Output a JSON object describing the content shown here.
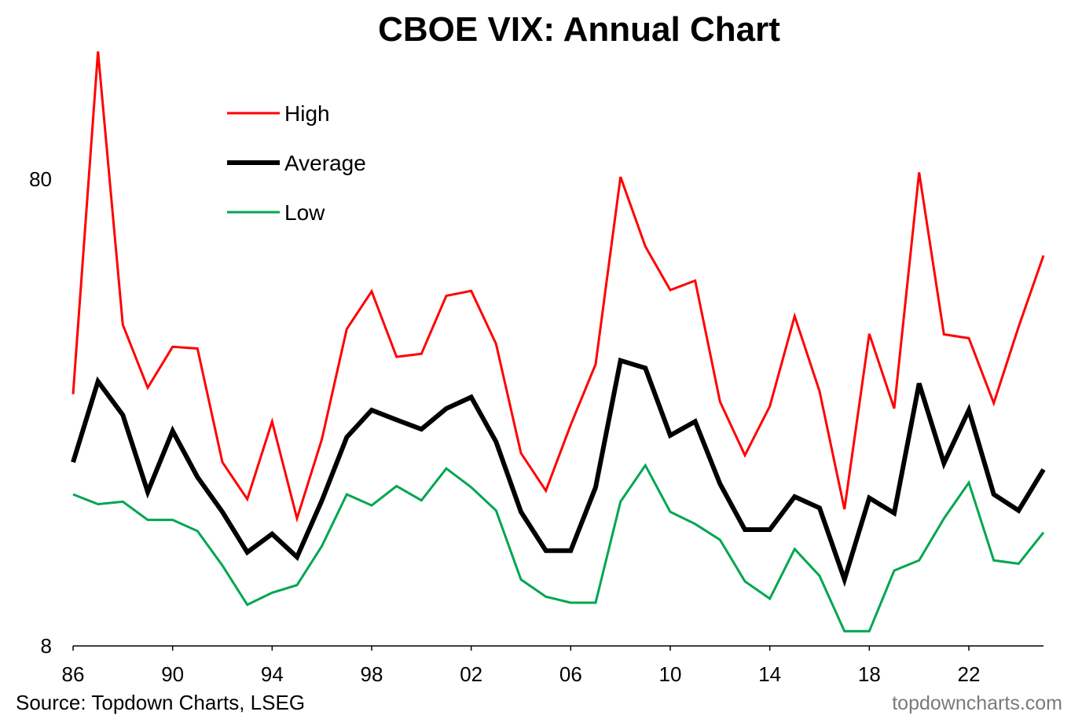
{
  "chart_data": {
    "type": "line",
    "title": "CBOE VIX: Annual Chart",
    "xlabel": "",
    "ylabel": "",
    "y_scale": "log",
    "ylim": [
      8,
      80
    ],
    "y_ticks": [
      {
        "value": 80,
        "label": "80"
      },
      {
        "value": 8,
        "label": "8"
      }
    ],
    "xlim": [
      1986,
      2025
    ],
    "x_ticks": [
      {
        "value": 1986,
        "label": "86"
      },
      {
        "value": 1990,
        "label": "90"
      },
      {
        "value": 1994,
        "label": "94"
      },
      {
        "value": 1998,
        "label": "98"
      },
      {
        "value": 2002,
        "label": "02"
      },
      {
        "value": 2006,
        "label": "06"
      },
      {
        "value": 2010,
        "label": "10"
      },
      {
        "value": 2014,
        "label": "14"
      },
      {
        "value": 2018,
        "label": "18"
      },
      {
        "value": 2022,
        "label": "22"
      }
    ],
    "x": [
      1986,
      1987,
      1988,
      1989,
      1990,
      1991,
      1992,
      1993,
      1994,
      1995,
      1996,
      1997,
      1998,
      1999,
      2000,
      2001,
      2002,
      2003,
      2004,
      2005,
      2006,
      2007,
      2008,
      2009,
      2010,
      2011,
      2012,
      2013,
      2014,
      2015,
      2016,
      2017,
      2018,
      2019,
      2020,
      2021,
      2022,
      2023,
      2024,
      2025
    ],
    "series": [
      {
        "name": "High",
        "color": "#ff0000",
        "values": [
          27.7,
          150.2,
          39.0,
          28.6,
          35.0,
          34.7,
          19.8,
          16.5,
          24.2,
          15.0,
          22.2,
          38.2,
          46.0,
          33.3,
          33.8,
          45.0,
          46.1,
          35.5,
          20.7,
          17.2,
          23.8,
          32.1,
          80.9,
          57.4,
          46.3,
          48.5,
          26.7,
          20.5,
          26.1,
          40.7,
          28.1,
          15.7,
          37.3,
          25.8,
          82.7,
          37.2,
          36.5,
          26.5,
          38.6,
          54.9
        ],
        "line_width": 3
      },
      {
        "name": "Average",
        "color": "#000000",
        "values": [
          19.8,
          29.5,
          25.0,
          17.1,
          23.1,
          18.4,
          15.5,
          12.7,
          13.9,
          12.4,
          16.4,
          22.4,
          25.6,
          24.4,
          23.3,
          25.8,
          27.3,
          21.9,
          15.5,
          12.8,
          12.8,
          17.5,
          32.7,
          31.5,
          22.6,
          24.2,
          17.8,
          14.2,
          14.2,
          16.7,
          15.8,
          11.1,
          16.6,
          15.4,
          29.2,
          19.7,
          25.6,
          16.9,
          15.6,
          19.1
        ],
        "line_width": 6
      },
      {
        "name": "Low",
        "color": "#00a651",
        "values": [
          16.9,
          16.1,
          16.3,
          14.9,
          14.9,
          14.1,
          11.9,
          9.8,
          10.4,
          10.8,
          13.1,
          16.9,
          16.0,
          17.6,
          16.4,
          19.2,
          17.5,
          15.6,
          11.1,
          10.2,
          9.9,
          9.9,
          16.3,
          19.5,
          15.5,
          14.6,
          13.5,
          11.0,
          10.1,
          12.9,
          11.3,
          8.6,
          8.6,
          11.6,
          12.2,
          15.0,
          17.9,
          12.2,
          12.0,
          14.0
        ],
        "line_width": 3
      }
    ],
    "legend": {
      "position": "top-left",
      "entries": [
        "High",
        "Average",
        "Low"
      ]
    },
    "grid": false
  },
  "footer": {
    "source": "Source: Topdown Charts, LSEG",
    "watermark": "topdowncharts.com"
  }
}
